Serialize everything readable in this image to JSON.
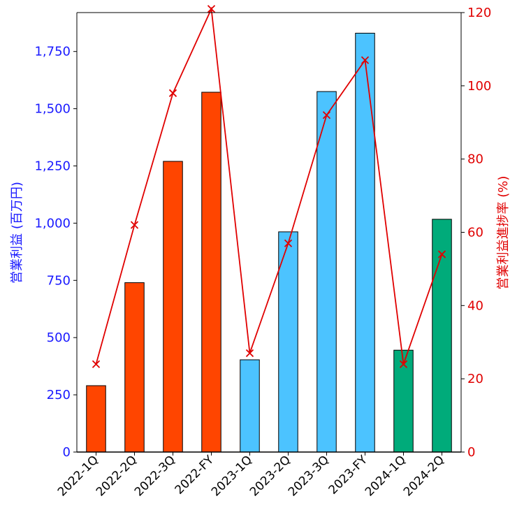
{
  "chart_data": {
    "type": "bar",
    "categories": [
      "2022-1Q",
      "2022-2Q",
      "2022-3Q",
      "2022-FY",
      "2023-1Q",
      "2023-2Q",
      "2023-3Q",
      "2023-FY",
      "2024-1Q",
      "2024-2Q"
    ],
    "series": [
      {
        "values": [
          290,
          740,
          1270,
          1572,
          403,
          962,
          1575,
          1830,
          445,
          1017
        ],
        "type": "bar",
        "axis": "left",
        "colors": [
          "#ff4500",
          "#ff4500",
          "#ff4500",
          "#ff4500",
          "#4cc3ff",
          "#4cc3ff",
          "#4cc3ff",
          "#4cc3ff",
          "#00ab7a",
          "#00ab7a"
        ]
      },
      {
        "values": [
          24,
          62,
          98,
          121,
          27,
          57,
          92,
          107,
          24,
          54
        ],
        "type": "line",
        "axis": "right",
        "marker": "x",
        "color": "#e00000"
      }
    ],
    "ylabel": "営業利益 (百万円)",
    "ylabel_right": "営業利益進捗率 (%)",
    "ylim": [
      0,
      1920
    ],
    "ylim_right": [
      0,
      120
    ],
    "yticks": [
      "0",
      "250",
      "500",
      "750",
      "1,000",
      "1,250",
      "1,500",
      "1,750"
    ],
    "yticks_right": [
      "0",
      "20",
      "40",
      "60",
      "80",
      "100",
      "120"
    ],
    "grid": false,
    "colors": {
      "left_axis": "#1a1aff",
      "right_axis": "#e00000",
      "fy2022": "#ff4500",
      "fy2023": "#4cc3ff",
      "fy2024": "#00ab7a"
    }
  }
}
